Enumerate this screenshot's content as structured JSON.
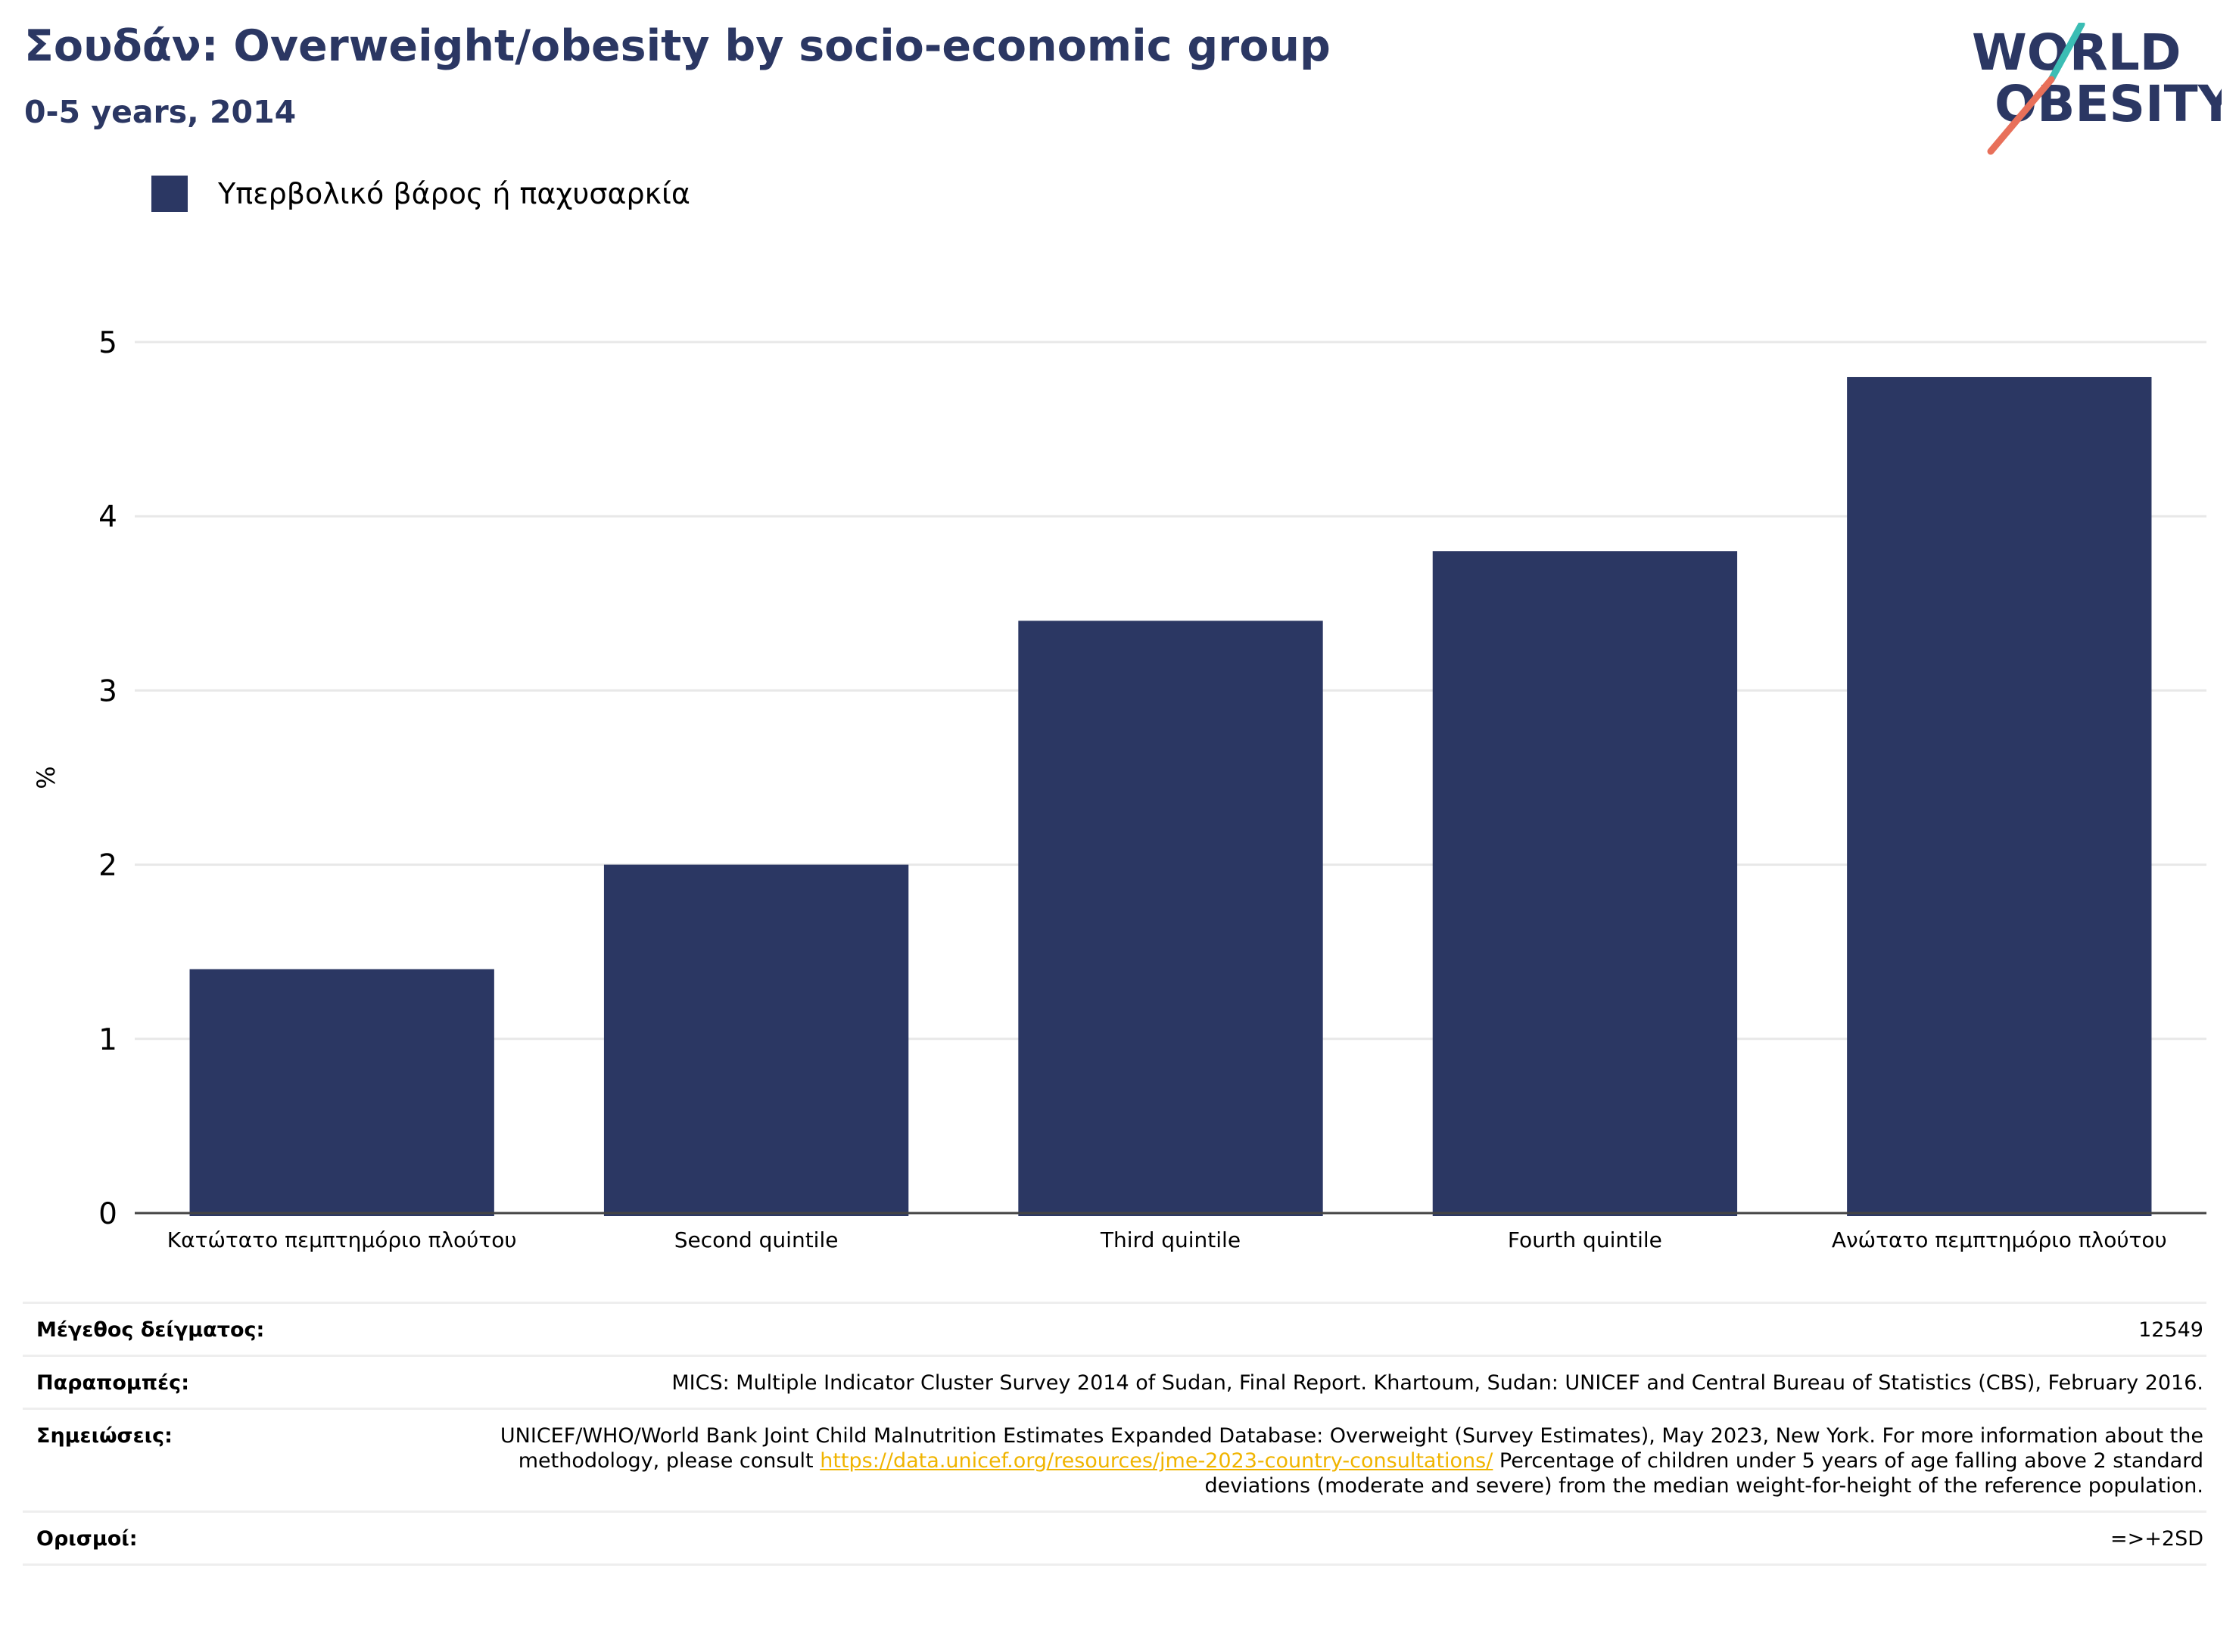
{
  "header": {
    "title": "Σουδάν: Overweight/obesity by socio-economic group",
    "subtitle": "0-5 years, 2014"
  },
  "logo": {
    "line1": "WORLD",
    "line2": "OBESITY",
    "colors": {
      "text": "#2b3763",
      "slash_teal": "#3bbdb4",
      "slash_coral": "#e8705a"
    }
  },
  "colors": {
    "bar": "#2b3763",
    "grid": "#e8e8e8",
    "axis": "#444444",
    "link": "#f0b400"
  },
  "chart_data": {
    "type": "bar",
    "title": "Σουδάν: Overweight/obesity by socio-economic group",
    "subtitle": "0-5 years, 2014",
    "categories": [
      "Κατώτατο πεμπτημόριο πλούτου",
      "Second quintile",
      "Third quintile",
      "Fourth quintile",
      "Ανώτατο πεμπτημόριο πλούτου"
    ],
    "series": [
      {
        "name": "Υπερβολικό βάρος ή παχυσαρκία",
        "values": [
          1.4,
          2.0,
          3.4,
          3.8,
          4.8
        ]
      }
    ],
    "xlabel": "",
    "ylabel": "%",
    "ylim": [
      0,
      5
    ],
    "yticks": [
      0,
      1,
      2,
      3,
      4,
      5
    ],
    "grid": true,
    "legend_position": "top-left"
  },
  "meta": {
    "sample_label": "Μέγεθος δείγματος:",
    "sample_value": "12549",
    "references_label": "Παραπομπές:",
    "references_value": "MICS: Multiple Indicator Cluster Survey 2014 of Sudan, Final Report. Khartoum, Sudan: UNICEF and Central Bureau of Statistics (CBS), February 2016.",
    "notes_label": "Σημειώσεις:",
    "notes_before_link": "UNICEF/WHO/World Bank Joint Child Malnutrition Estimates Expanded Database: Overweight (Survey Estimates), May 2023, New York. For more information about the methodology, please consult ",
    "notes_link": "https://data.unicef.org/resources/jme-2023-country-consultations/",
    "notes_after_link": " Percentage of children under 5 years of age falling above 2 standard deviations (moderate and severe) from the median weight-for-height of the reference population.",
    "definitions_label": "Ορισμοί:",
    "definitions_value": "=>+2SD"
  }
}
